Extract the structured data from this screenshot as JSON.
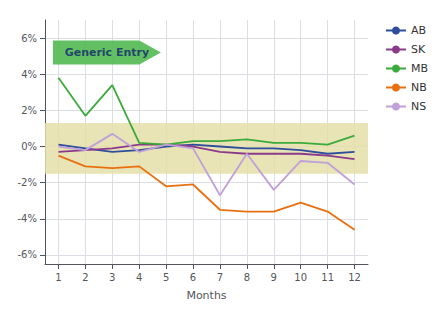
{
  "chart_data": {
    "type": "line",
    "x_label": "Months",
    "x": [
      1,
      2,
      3,
      4,
      5,
      6,
      7,
      8,
      9,
      10,
      11,
      12
    ],
    "xlim": [
      0.5,
      12.5
    ],
    "xticks": [
      1,
      2,
      3,
      4,
      5,
      6,
      7,
      8,
      9,
      10,
      11,
      12
    ],
    "ylim": [
      -6.5,
      7.0
    ],
    "yticks": [
      {
        "value": -6,
        "label": "-6%"
      },
      {
        "value": -4,
        "label": "-4%"
      },
      {
        "value": -2,
        "label": "-2%"
      },
      {
        "value": 0,
        "label": "0%"
      },
      {
        "value": 2,
        "label": "2%"
      },
      {
        "value": 4,
        "label": "4%"
      },
      {
        "value": 6,
        "label": "6%"
      }
    ],
    "grid": true,
    "legend": "right",
    "band": [
      -1.5,
      1.3
    ],
    "annotations": [
      {
        "text": "Generic Entry",
        "x": 2.8,
        "y": 5.2,
        "color": "#55bb55"
      }
    ],
    "series": [
      {
        "name": "AB",
        "color": "#2e4d9b",
        "values": [
          0.1,
          -0.1,
          -0.3,
          -0.2,
          0.0,
          0.1,
          0.0,
          -0.1,
          -0.1,
          -0.2,
          -0.4,
          -0.3
        ]
      },
      {
        "name": "SK",
        "color": "#8b3a8b",
        "values": [
          -0.3,
          -0.2,
          -0.1,
          0.1,
          0.1,
          0.0,
          -0.3,
          -0.4,
          -0.4,
          -0.4,
          -0.5,
          -0.7
        ]
      },
      {
        "name": "MB",
        "color": "#3aaa3a",
        "values": [
          3.8,
          1.7,
          3.4,
          0.2,
          0.1,
          0.3,
          0.3,
          0.4,
          0.2,
          0.2,
          0.1,
          0.6
        ]
      },
      {
        "name": "NB",
        "color": "#e87010",
        "values": [
          -0.5,
          -1.1,
          -1.2,
          -1.1,
          -2.2,
          -2.1,
          -3.5,
          -3.6,
          -3.6,
          -3.1,
          -3.6,
          -4.6
        ]
      },
      {
        "name": "NS",
        "color": "#c0a0d8",
        "values": [
          0.0,
          -0.2,
          0.7,
          -0.3,
          0.1,
          -0.1,
          -2.7,
          -0.4,
          -2.4,
          -0.8,
          -0.9,
          -2.1
        ]
      }
    ]
  }
}
